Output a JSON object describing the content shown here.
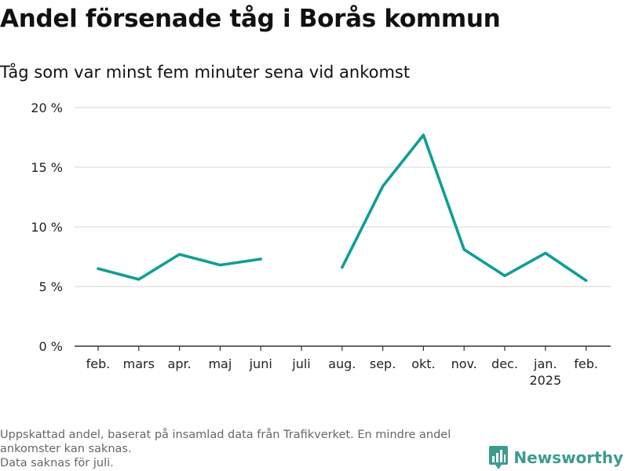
{
  "title": "Andel försenade tåg i Borås kommun",
  "subtitle": "Tåg som var minst fem minuter sena vid ankomst",
  "footnotes": [
    "Uppskattad andel, baserat på insamlad data från Trafikverket. En mindre andel ankomster kan saknas.",
    "Data saknas för juli."
  ],
  "brand": {
    "name": "Newsworthy",
    "icon": "newsworthy-logo-icon"
  },
  "colors": {
    "line": "#0f9e95",
    "grid": "#dddddd",
    "axis": "#333333",
    "brand": "#3d9b8f"
  },
  "chart_data": {
    "type": "line",
    "categories": [
      "feb.",
      "mars",
      "apr.",
      "maj",
      "juni",
      "juli",
      "aug.",
      "sep.",
      "okt.",
      "nov.",
      "dec.",
      "jan.",
      "feb."
    ],
    "category_sublabels": [
      "",
      "",
      "",
      "",
      "",
      "",
      "",
      "",
      "",
      "",
      "",
      "2025",
      ""
    ],
    "series": [
      {
        "values": [
          6.5,
          5.6,
          7.7,
          6.8,
          7.3,
          null,
          6.6,
          13.4,
          17.7,
          8.1,
          5.9,
          7.8,
          5.5
        ]
      }
    ],
    "y_ticks": [
      0,
      5,
      10,
      15,
      20
    ],
    "y_tick_labels": [
      "0 %",
      "5 %",
      "10 %",
      "15 %",
      "20 %"
    ],
    "ylim": [
      0,
      20
    ],
    "grid": true,
    "legend": "none"
  }
}
